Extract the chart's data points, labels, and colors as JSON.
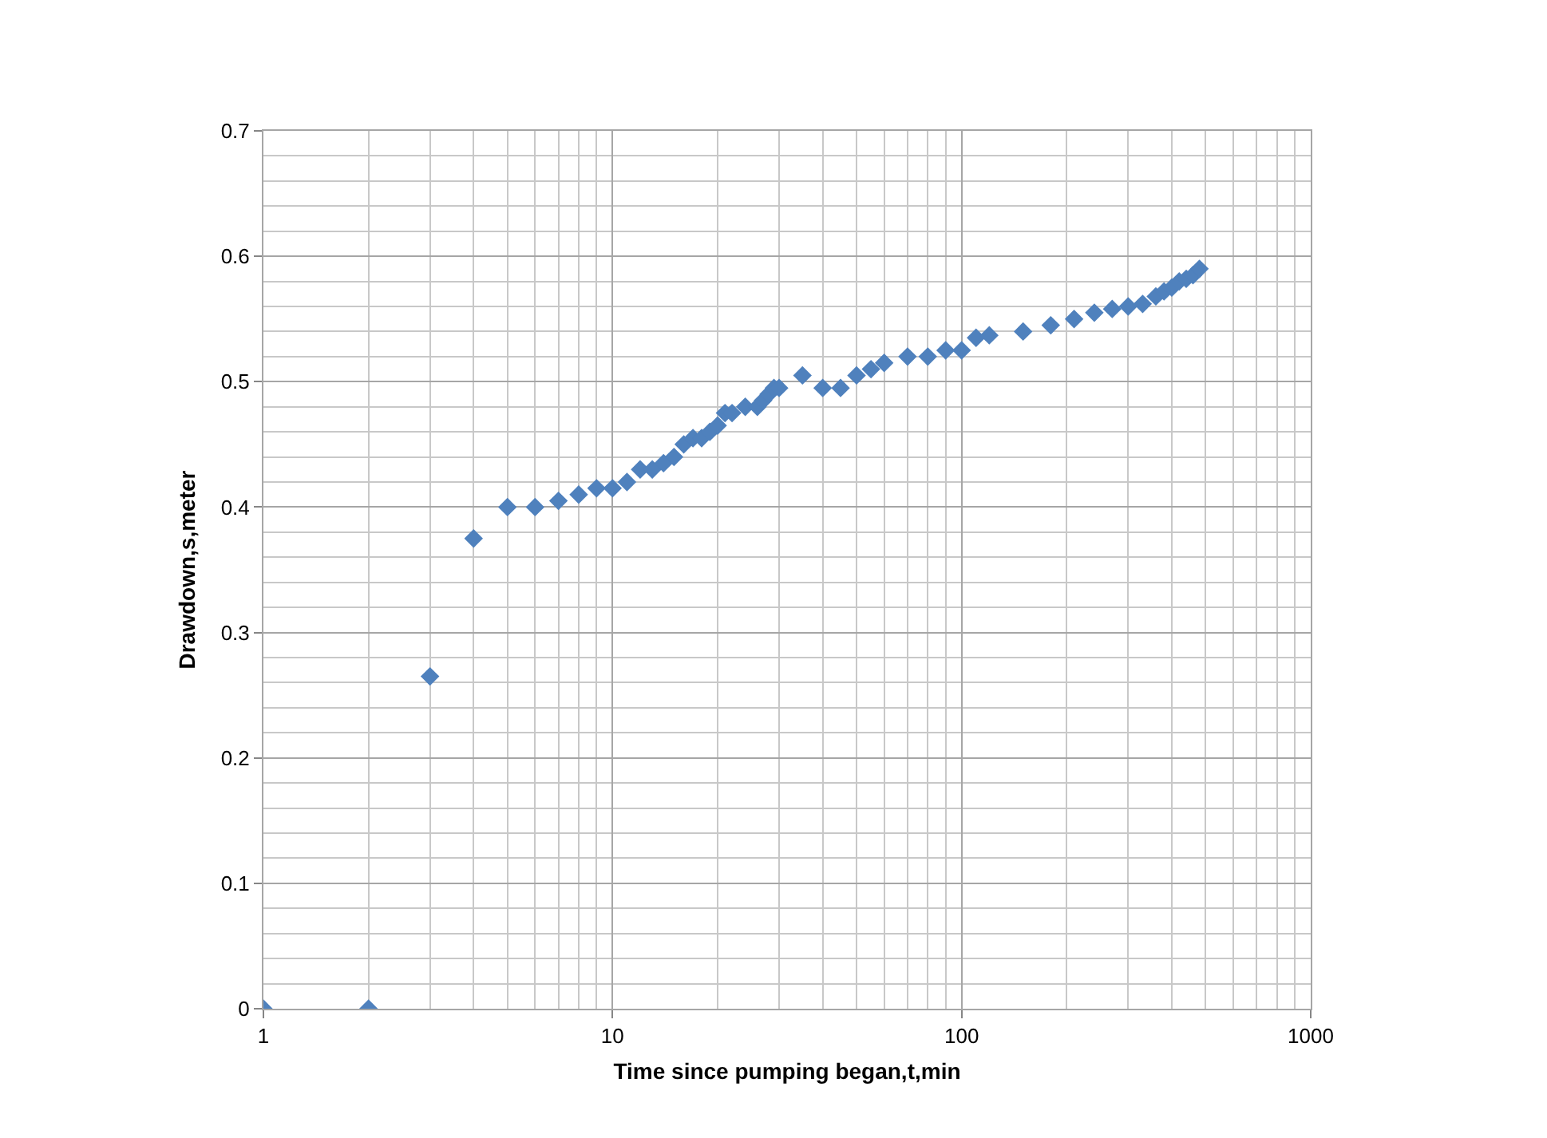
{
  "chart_data": {
    "type": "scatter",
    "xlabel": "Time since pumping began,t,min",
    "ylabel": "Drawdown,s,meter",
    "log": "x",
    "grid": true,
    "marker": "diamond",
    "legend": false,
    "xlim": [
      1,
      1000
    ],
    "xticks": [
      1,
      10,
      100,
      1000
    ],
    "ylim": [
      0,
      0.7
    ],
    "yticks": [
      0,
      0.1,
      0.2,
      0.3,
      0.4,
      0.5,
      0.6,
      0.7
    ],
    "x": [
      1,
      2,
      3,
      4,
      5,
      6,
      7,
      8,
      9,
      10,
      11,
      12,
      13,
      14,
      15,
      16,
      17,
      18,
      19,
      20,
      21,
      22,
      24,
      26,
      27,
      28,
      29,
      30,
      35,
      40,
      45,
      50,
      55,
      60,
      70,
      80,
      90,
      100,
      110,
      120,
      150,
      180,
      210,
      240,
      270,
      300,
      330,
      360,
      380,
      400,
      420,
      440,
      460,
      480
    ],
    "series": [
      {
        "color": "#4f81bd",
        "values": [
          0,
          0,
          0.265,
          0.375,
          0.4,
          0.4,
          0.405,
          0.41,
          0.415,
          0.415,
          0.42,
          0.43,
          0.43,
          0.435,
          0.44,
          0.45,
          0.455,
          0.455,
          0.46,
          0.465,
          0.475,
          0.475,
          0.48,
          0.48,
          0.485,
          0.49,
          0.495,
          0.495,
          0.505,
          0.495,
          0.495,
          0.505,
          0.51,
          0.515,
          0.52,
          0.52,
          0.525,
          0.525,
          0.535,
          0.537,
          0.54,
          0.545,
          0.55,
          0.555,
          0.558,
          0.56,
          0.562,
          0.568,
          0.572,
          0.575,
          0.58,
          0.582,
          0.585,
          0.59
        ]
      }
    ]
  }
}
